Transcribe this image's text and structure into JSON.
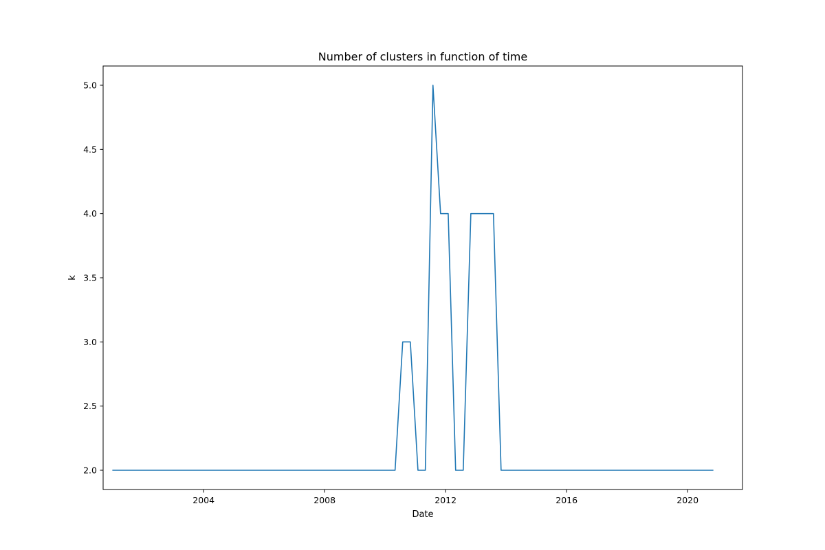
{
  "chart_data": {
    "type": "line",
    "title": "Number of clusters in function of time",
    "xlabel": "Date",
    "ylabel": "k",
    "xlim": [
      "2000-09-05",
      "2021-10-25"
    ],
    "ylim": [
      1.85,
      5.15
    ],
    "x_ticks": [
      "2004",
      "2008",
      "2012",
      "2016",
      "2020"
    ],
    "y_ticks": [
      "2.0",
      "2.5",
      "3.0",
      "3.5",
      "4.0",
      "4.5",
      "5.0"
    ],
    "grid": false,
    "legend": "none",
    "series": [
      {
        "color": "#1f77b4",
        "points": [
          {
            "x": "2001-01-01",
            "y": 2
          },
          {
            "x": "2010-05-01",
            "y": 2
          },
          {
            "x": "2010-08-01",
            "y": 3
          },
          {
            "x": "2010-11-01",
            "y": 3
          },
          {
            "x": "2011-02-01",
            "y": 2
          },
          {
            "x": "2011-05-01",
            "y": 2
          },
          {
            "x": "2011-08-01",
            "y": 5
          },
          {
            "x": "2011-11-01",
            "y": 4
          },
          {
            "x": "2012-02-01",
            "y": 4
          },
          {
            "x": "2012-05-01",
            "y": 2
          },
          {
            "x": "2012-08-01",
            "y": 2
          },
          {
            "x": "2012-11-01",
            "y": 4
          },
          {
            "x": "2013-08-01",
            "y": 4
          },
          {
            "x": "2013-11-01",
            "y": 2
          },
          {
            "x": "2020-11-01",
            "y": 2
          }
        ]
      }
    ]
  }
}
